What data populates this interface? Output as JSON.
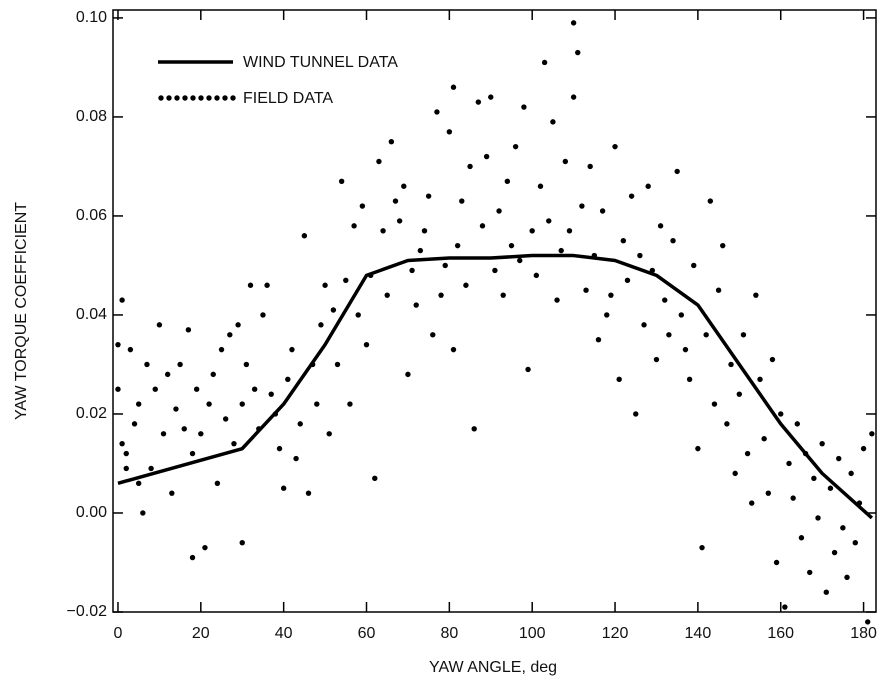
{
  "chart_data": {
    "type": "scatter",
    "xlabel": "YAW ANGLE, deg",
    "ylabel": "YAW TORQUE COEFFICIENT",
    "xlim": [
      -1.2,
      183
    ],
    "ylim": [
      -0.02,
      0.1016
    ],
    "xticks": [
      0,
      20,
      40,
      60,
      80,
      100,
      120,
      140,
      160,
      180
    ],
    "yticks": [
      {
        "value": -0.02,
        "label": "−0.02"
      },
      {
        "value": 0,
        "label": "0.00"
      },
      0.02,
      0.04,
      0.06,
      0.08,
      {
        "value": 0.1,
        "label": "0.10"
      }
    ],
    "grid": false,
    "legend": "upper left",
    "series": [
      {
        "name": "WIND TUNNEL DATA",
        "type": "line",
        "color": "#000000",
        "x": [
          0,
          30,
          40,
          50,
          60,
          70,
          80,
          90,
          100,
          110,
          120,
          130,
          140,
          150,
          160,
          170,
          182
        ],
        "values": [
          0.006,
          0.013,
          0.022,
          0.034,
          0.048,
          0.051,
          0.0515,
          0.0515,
          0.052,
          0.052,
          0.051,
          0.048,
          0.042,
          0.03,
          0.018,
          0.008,
          -0.001
        ]
      },
      {
        "name": "FIELD DATA",
        "type": "scatter",
        "color": "#000000",
        "x": [
          0,
          0,
          1,
          1,
          2,
          2,
          3,
          4,
          5,
          5,
          6,
          7,
          8,
          9,
          10,
          11,
          12,
          13,
          14,
          15,
          16,
          17,
          18,
          18,
          19,
          20,
          21,
          22,
          23,
          24,
          25,
          26,
          27,
          28,
          29,
          30,
          30,
          31,
          32,
          33,
          34,
          35,
          36,
          37,
          38,
          39,
          40,
          41,
          42,
          43,
          44,
          45,
          46,
          47,
          48,
          49,
          50,
          51,
          52,
          53,
          54,
          55,
          56,
          57,
          58,
          59,
          60,
          61,
          62,
          63,
          64,
          65,
          66,
          67,
          68,
          69,
          70,
          71,
          72,
          73,
          74,
          75,
          76,
          77,
          78,
          79,
          80,
          81,
          81,
          82,
          83,
          84,
          85,
          86,
          87,
          88,
          89,
          90,
          91,
          92,
          93,
          94,
          95,
          96,
          97,
          98,
          99,
          100,
          101,
          102,
          103,
          104,
          105,
          106,
          107,
          108,
          109,
          110,
          110,
          111,
          112,
          113,
          114,
          115,
          116,
          117,
          118,
          119,
          120,
          121,
          122,
          123,
          124,
          125,
          126,
          127,
          128,
          129,
          130,
          131,
          132,
          133,
          134,
          135,
          136,
          137,
          138,
          139,
          140,
          141,
          142,
          143,
          144,
          145,
          146,
          147,
          148,
          149,
          150,
          151,
          152,
          153,
          154,
          155,
          156,
          157,
          158,
          159,
          160,
          161,
          162,
          163,
          164,
          165,
          166,
          167,
          168,
          169,
          170,
          171,
          172,
          173,
          174,
          175,
          176,
          177,
          178,
          179,
          180,
          181,
          182
        ],
        "values": [
          0.034,
          0.025,
          0.043,
          0.014,
          0.012,
          0.009,
          0.033,
          0.018,
          0.006,
          0.022,
          0.0,
          0.03,
          0.009,
          0.025,
          0.038,
          0.016,
          0.028,
          0.004,
          0.021,
          0.03,
          0.017,
          0.037,
          -0.009,
          0.012,
          0.025,
          0.016,
          -0.007,
          0.022,
          0.028,
          0.006,
          0.033,
          0.019,
          0.036,
          0.014,
          0.038,
          0.022,
          -0.006,
          0.03,
          0.046,
          0.025,
          0.017,
          0.04,
          0.046,
          0.024,
          0.02,
          0.013,
          0.005,
          0.027,
          0.033,
          0.011,
          0.018,
          0.056,
          0.004,
          0.03,
          0.022,
          0.038,
          0.046,
          0.016,
          0.041,
          0.03,
          0.067,
          0.047,
          0.022,
          0.058,
          0.04,
          0.062,
          0.034,
          0.048,
          0.007,
          0.071,
          0.057,
          0.044,
          0.075,
          0.063,
          0.059,
          0.066,
          0.028,
          0.049,
          0.042,
          0.053,
          0.057,
          0.064,
          0.036,
          0.081,
          0.044,
          0.05,
          0.077,
          0.086,
          0.033,
          0.054,
          0.063,
          0.046,
          0.07,
          0.017,
          0.083,
          0.058,
          0.072,
          0.084,
          0.049,
          0.061,
          0.044,
          0.067,
          0.054,
          0.074,
          0.051,
          0.082,
          0.029,
          0.057,
          0.048,
          0.066,
          0.091,
          0.059,
          0.079,
          0.043,
          0.053,
          0.071,
          0.057,
          0.084,
          0.099,
          0.093,
          0.062,
          0.045,
          0.07,
          0.052,
          0.035,
          0.061,
          0.04,
          0.044,
          0.074,
          0.027,
          0.055,
          0.047,
          0.064,
          0.02,
          0.052,
          0.038,
          0.066,
          0.049,
          0.031,
          0.058,
          0.043,
          0.036,
          0.055,
          0.069,
          0.04,
          0.033,
          0.027,
          0.05,
          0.013,
          -0.007,
          0.036,
          0.063,
          0.022,
          0.045,
          0.054,
          0.018,
          0.03,
          0.008,
          0.024,
          0.036,
          0.012,
          0.002,
          0.044,
          0.027,
          0.015,
          0.004,
          0.031,
          -0.01,
          0.02,
          -0.019,
          0.01,
          0.003,
          0.018,
          -0.005,
          0.012,
          -0.012,
          0.007,
          -0.001,
          0.014,
          -0.016,
          0.005,
          -0.008,
          0.011,
          -0.003,
          -0.013,
          0.008,
          -0.006,
          0.002,
          0.013,
          -0.022,
          0.016
        ]
      }
    ]
  }
}
